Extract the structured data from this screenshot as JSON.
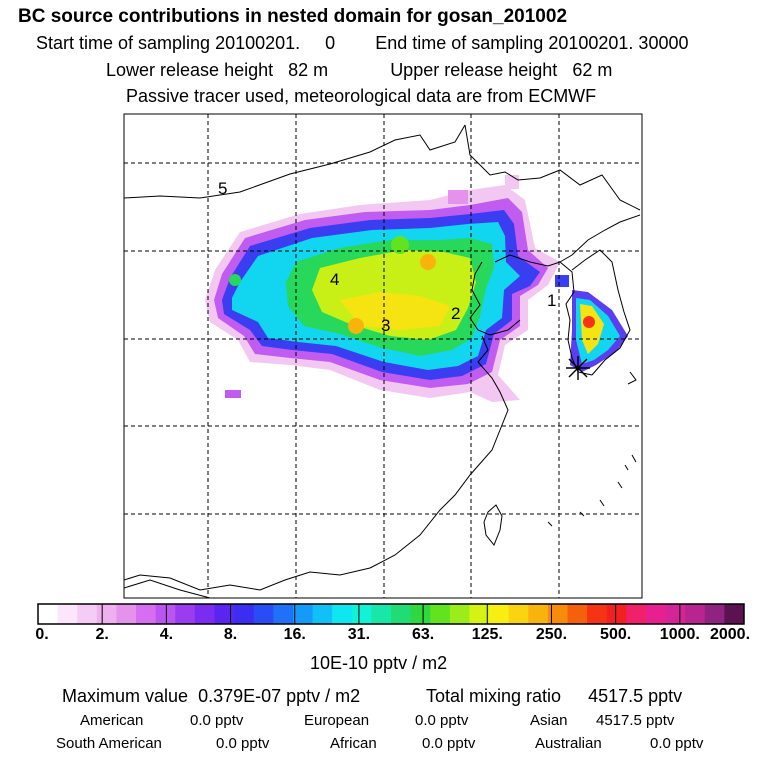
{
  "header": {
    "title": "BC  source contributions in nested domain for gosan_201002",
    "start_label": "Start time of sampling",
    "start_value": "20100201.     0",
    "end_label": "End time of sampling",
    "end_value": "20100201. 30000",
    "lower_label": "Lower release height",
    "lower_value": "82 m",
    "upper_label": "Upper release height",
    "upper_value": "62 m",
    "note": "Passive tracer used, meteorological data are from ECMWF"
  },
  "map": {
    "region_labels": [
      "5",
      "4",
      "3",
      "2",
      "1"
    ],
    "receptor_marker": "star-icon"
  },
  "colorbar": {
    "colors": [
      "#ffffff",
      "#fbe6fb",
      "#f5ccf5",
      "#eeb0ee",
      "#e592ec",
      "#d56ff0",
      "#bb55f0",
      "#9a3cef",
      "#7a2cf0",
      "#5b25f0",
      "#3b2ef2",
      "#2a4cf5",
      "#1f72f8",
      "#159af8",
      "#10c0f7",
      "#0ee6f2",
      "#12f2d5",
      "#17e8a8",
      "#1fdc75",
      "#2fd83f",
      "#62e31f",
      "#9bec18",
      "#d4f214",
      "#f7ee12",
      "#f9d410",
      "#f8b30d",
      "#f78b0b",
      "#f5600d",
      "#f43414",
      "#f2201e",
      "#f0206a",
      "#e8208f",
      "#d42596",
      "#b8258f",
      "#8e2480",
      "#5a1250"
    ],
    "ticks": [
      "0.",
      "2.",
      "4.",
      "8.",
      "16.",
      "31.",
      "63.",
      "125.",
      "250.",
      "500.",
      "1000.",
      "2000."
    ],
    "unit": "10E-10 pptv / m2"
  },
  "stats": {
    "max_label": "Maximum value",
    "max_value": "0.379E-07 pptv / m2",
    "total_label": "Total mixing ratio",
    "total_value": "4517.5 pptv",
    "american_label": "American",
    "american_value": "0.0 pptv",
    "european_label": "European",
    "european_value": "0.0 pptv",
    "asian_label": "Asian",
    "asian_value": "4517.5 pptv",
    "south_american_label": "South American",
    "south_american_value": "0.0 pptv",
    "african_label": "African",
    "african_value": "0.0 pptv",
    "australian_label": "Australian",
    "australian_value": "0.0 pptv"
  }
}
